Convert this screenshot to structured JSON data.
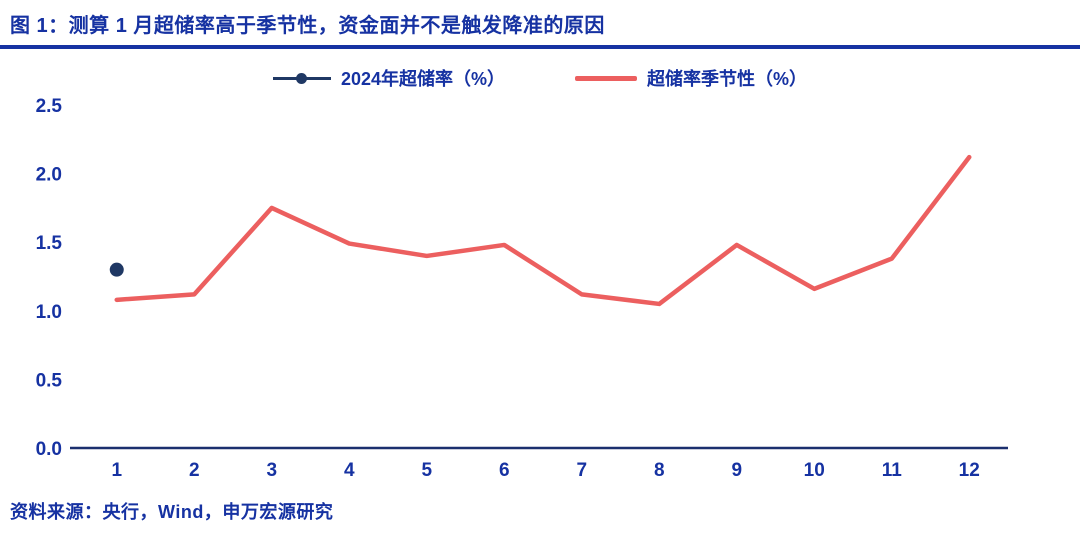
{
  "header": {
    "title": "图 1：测算 1 月超储率高于季节性，资金面并不是触发降准的原因"
  },
  "footer": {
    "source": "资料来源：央行，Wind，申万宏源研究"
  },
  "colors": {
    "text_blue": "#1632a2",
    "navy_series": "#1f3864",
    "red_series": "#ec5f5f",
    "axis": "#1b2f6e"
  },
  "chart_data": {
    "type": "line",
    "title": "测算 1 月超储率高于季节性，资金面并不是触发降准的原因",
    "categories": [
      1,
      2,
      3,
      4,
      5,
      6,
      7,
      8,
      9,
      10,
      11,
      12
    ],
    "series": [
      {
        "name": "2024年超储率（%）",
        "color_key": "navy_series",
        "style": "point",
        "values": [
          1.3,
          null,
          null,
          null,
          null,
          null,
          null,
          null,
          null,
          null,
          null,
          null
        ]
      },
      {
        "name": "超储率季节性（%）",
        "color_key": "red_series",
        "style": "line",
        "values": [
          1.08,
          1.12,
          1.75,
          1.49,
          1.4,
          1.48,
          1.12,
          1.05,
          1.48,
          1.16,
          1.38,
          2.12
        ]
      }
    ],
    "xlabel": "",
    "ylabel": "",
    "ylim": [
      0,
      2.5
    ],
    "yticks": [
      0.0,
      0.5,
      1.0,
      1.5,
      2.0,
      2.5
    ],
    "grid": false,
    "legend_position": "top"
  }
}
